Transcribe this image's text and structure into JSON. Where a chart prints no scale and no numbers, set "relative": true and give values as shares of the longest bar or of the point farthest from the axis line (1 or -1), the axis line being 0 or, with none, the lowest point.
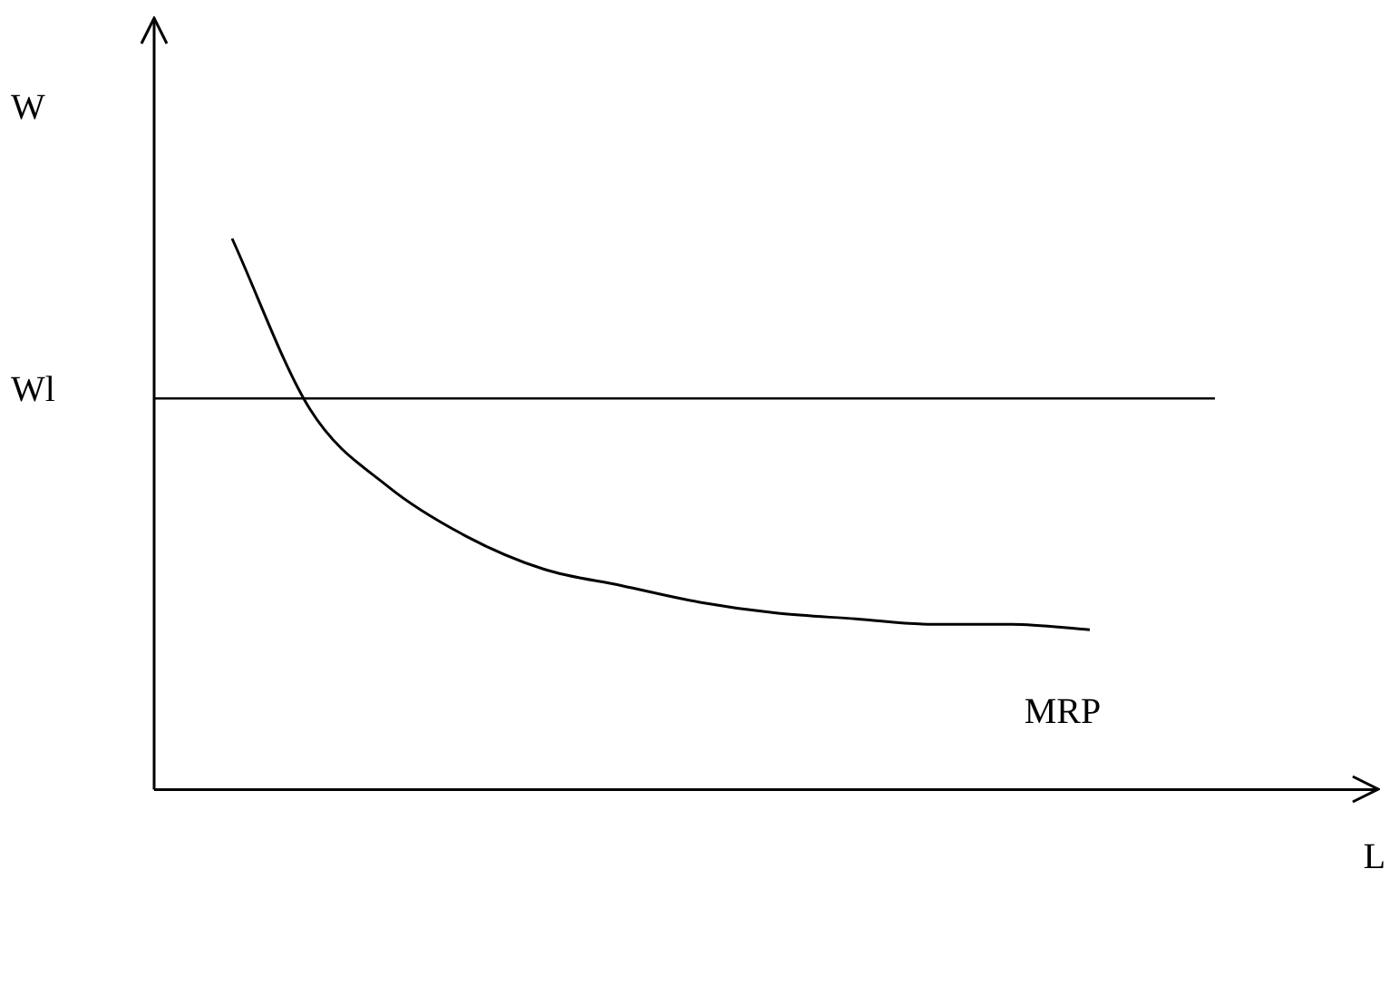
{
  "chart_data": {
    "type": "line",
    "relative": true,
    "xlabel": "L",
    "ylabel": "W",
    "categories": [
      null,
      null,
      null,
      null,
      null,
      null,
      null,
      null,
      null,
      null,
      null,
      null,
      null,
      null,
      null,
      null
    ],
    "series": [
      {
        "name": "MRP",
        "color": "#000000",
        "values": [
          null,
          1,
          0.69,
          0.55,
          0.46,
          0.4,
          0.37,
          0.34,
          0.32,
          0.31,
          0.3,
          0.3,
          0.29,
          null,
          null,
          null
        ]
      }
    ],
    "ref_lines": [
      {
        "axis": "y",
        "value": 0.71,
        "label": "Wl",
        "color": "#000000"
      }
    ],
    "marker": "none",
    "line_style": "solid",
    "legend": false
  }
}
